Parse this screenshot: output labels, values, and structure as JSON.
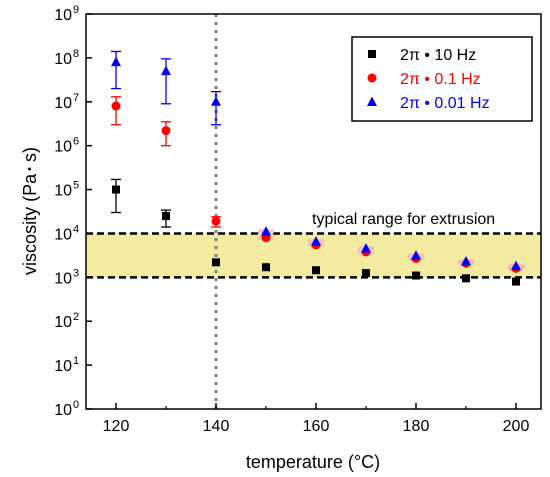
{
  "chart_data": {
    "type": "scatter",
    "title": "",
    "xlabel": "temperature (°C)",
    "ylabel_main": "viscosity (Pa",
    "ylabel_dot": "•",
    "ylabel_end": " s)",
    "x_range": [
      114,
      205
    ],
    "y_range": [
      1,
      1000000000
    ],
    "y_scale": "log",
    "x_ticks": [
      120,
      140,
      160,
      180,
      200
    ],
    "x_tick_labels": [
      "120",
      "140",
      "160",
      "180",
      "200"
    ],
    "y_ticks": [
      {
        "value": 1,
        "base": "10",
        "exp": "0"
      },
      {
        "value": 10,
        "base": "10",
        "exp": "1"
      },
      {
        "value": 100,
        "base": "10",
        "exp": "2"
      },
      {
        "value": 1000,
        "base": "10",
        "exp": "3"
      },
      {
        "value": 10000,
        "base": "10",
        "exp": "4"
      },
      {
        "value": 100000,
        "base": "10",
        "exp": "5"
      },
      {
        "value": 1000000,
        "base": "10",
        "exp": "6"
      },
      {
        "value": 10000000,
        "base": "10",
        "exp": "7"
      },
      {
        "value": 100000000,
        "base": "10",
        "exp": "8"
      },
      {
        "value": 1000000000,
        "base": "10",
        "exp": "9"
      }
    ],
    "grid": false,
    "legend_position": "top-right",
    "band": {
      "y_low": 1000,
      "y_high": 10000,
      "fill": "#f3eca0",
      "label": "typical range for extrusion"
    },
    "vline": {
      "x": 140,
      "color": "#808080"
    },
    "series": [
      {
        "name": "2π • 10 Hz",
        "marker": "square",
        "color": "#000000",
        "points": [
          {
            "x": 120,
            "y": 100000,
            "lo": 30000,
            "hi": 170000
          },
          {
            "x": 130,
            "y": 25000,
            "lo": 14000,
            "hi": 34000
          },
          {
            "x": 140,
            "y": 2200
          },
          {
            "x": 150,
            "y": 1700
          },
          {
            "x": 160,
            "y": 1450
          },
          {
            "x": 170,
            "y": 1250
          },
          {
            "x": 180,
            "y": 1100
          },
          {
            "x": 190,
            "y": 950
          },
          {
            "x": 200,
            "y": 800
          }
        ]
      },
      {
        "name": "2π • 0.1 Hz",
        "marker": "circle",
        "color": "#ff0000",
        "points": [
          {
            "x": 120,
            "y": 8000000,
            "lo": 3000000,
            "hi": 13000000
          },
          {
            "x": 130,
            "y": 2200000,
            "lo": 1000000,
            "hi": 3500000
          },
          {
            "x": 140,
            "y": 19000,
            "lo": 14000,
            "hi": 24000
          },
          {
            "x": 150,
            "y": 8000
          },
          {
            "x": 160,
            "y": 5500
          },
          {
            "x": 170,
            "y": 3800
          },
          {
            "x": 180,
            "y": 2700
          },
          {
            "x": 190,
            "y": 2100
          },
          {
            "x": 200,
            "y": 1600
          }
        ]
      },
      {
        "name": "2π • 0.01 Hz",
        "marker": "triangle",
        "color": "#0000ff",
        "points": [
          {
            "x": 120,
            "y": 80000000,
            "lo": 20000000,
            "hi": 140000000
          },
          {
            "x": 130,
            "y": 50000000,
            "lo": 9000000,
            "hi": 95000000
          },
          {
            "x": 140,
            "y": 10000000,
            "lo": 3000000,
            "hi": 17000000
          },
          {
            "x": 150,
            "y": 11000
          },
          {
            "x": 160,
            "y": 6500
          },
          {
            "x": 170,
            "y": 4500
          },
          {
            "x": 180,
            "y": 3100
          },
          {
            "x": 190,
            "y": 2300
          },
          {
            "x": 200,
            "y": 1800
          }
        ]
      }
    ]
  }
}
